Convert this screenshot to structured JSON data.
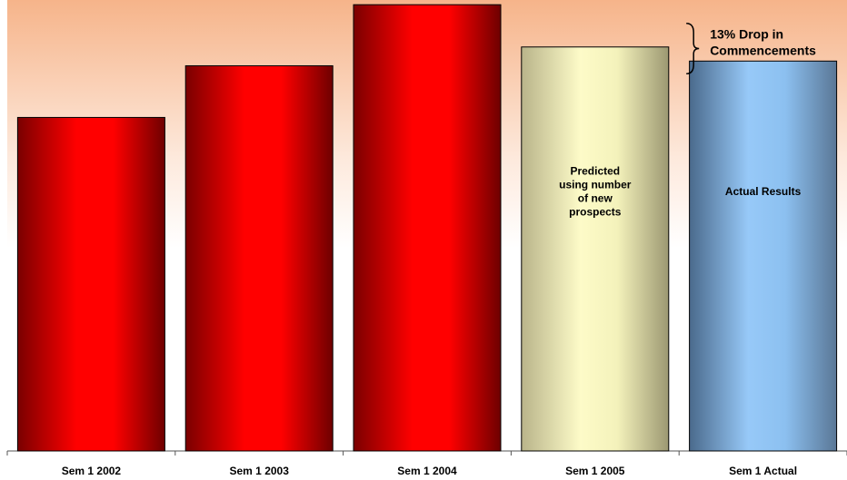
{
  "chart_data": {
    "type": "bar",
    "categories": [
      "Sem 1 2002",
      "Sem 1 2003",
      "Sem 1 2004",
      "Sem 1 2005",
      "Sem 1 Actual"
    ],
    "values": [
      71,
      82,
      95,
      86,
      83
    ],
    "ylim": [
      0,
      96
    ],
    "grid": false,
    "title": "",
    "xlabel": "",
    "ylabel": "",
    "bar_labels": [
      "",
      "",
      "",
      "Predicted\nusing number\nof new\nprospects",
      "Actual Results"
    ],
    "bar_styles": [
      "red",
      "red",
      "red",
      "cream",
      "blue"
    ],
    "annotation": {
      "text": "13% Drop in\nCommencements",
      "between": [
        3,
        4
      ]
    },
    "colors": {
      "red": [
        "#7a0000",
        "#ff0000",
        "#ff0000",
        "#6e0000"
      ],
      "cream": [
        "#b9b48a",
        "#fdfbc8",
        "#f4f2bb",
        "#9c9872"
      ],
      "blue": [
        "#4a6a8c",
        "#97c9f8",
        "#8cc0f0",
        "#5a7796"
      ],
      "background_top": "#f6b48a",
      "background_bottom": "#ffffff",
      "text": "#000000"
    }
  }
}
